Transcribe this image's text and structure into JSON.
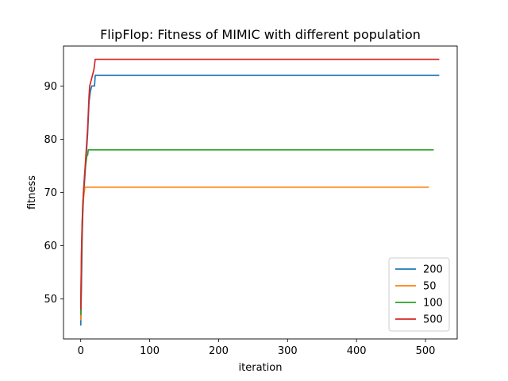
{
  "chart_data": {
    "type": "line",
    "title": "FlipFlop: Fitness of MIMIC with different population",
    "xlabel": "iteration",
    "ylabel": "fitness",
    "xlim": [
      -25,
      546
    ],
    "ylim": [
      42.5,
      97.5
    ],
    "xticks": [
      0,
      100,
      200,
      300,
      400,
      500
    ],
    "yticks": [
      50,
      60,
      70,
      80,
      90
    ],
    "grid": false,
    "legend_position": "lower-right",
    "series": [
      {
        "name": "200",
        "color": "#1f77b4",
        "points": [
          [
            0,
            45
          ],
          [
            1,
            52
          ],
          [
            2,
            61
          ],
          [
            3,
            66
          ],
          [
            4,
            69
          ],
          [
            5,
            71
          ],
          [
            6,
            73
          ],
          [
            7,
            75
          ],
          [
            8,
            77
          ],
          [
            9,
            79
          ],
          [
            10,
            81
          ],
          [
            11,
            84
          ],
          [
            12,
            87
          ],
          [
            13,
            88
          ],
          [
            14,
            89
          ],
          [
            16,
            90
          ],
          [
            20,
            90
          ],
          [
            21,
            92
          ],
          [
            520,
            92
          ]
        ]
      },
      {
        "name": "50",
        "color": "#ff7f0e",
        "points": [
          [
            0,
            46
          ],
          [
            1,
            58
          ],
          [
            2,
            64
          ],
          [
            3,
            67
          ],
          [
            4,
            69
          ],
          [
            5,
            70
          ],
          [
            6,
            71
          ],
          [
            505,
            71
          ]
        ]
      },
      {
        "name": "100",
        "color": "#2ca02c",
        "points": [
          [
            0,
            47
          ],
          [
            1,
            56
          ],
          [
            2,
            63
          ],
          [
            3,
            67
          ],
          [
            4,
            70
          ],
          [
            5,
            72
          ],
          [
            6,
            74
          ],
          [
            7,
            75
          ],
          [
            8,
            76
          ],
          [
            9,
            77
          ],
          [
            10,
            77
          ],
          [
            11,
            78
          ],
          [
            512,
            78
          ]
        ]
      },
      {
        "name": "500",
        "color": "#d62728",
        "points": [
          [
            0,
            48
          ],
          [
            1,
            58
          ],
          [
            2,
            64
          ],
          [
            3,
            68
          ],
          [
            4,
            70
          ],
          [
            5,
            72
          ],
          [
            6,
            74
          ],
          [
            7,
            76
          ],
          [
            8,
            78
          ],
          [
            9,
            80
          ],
          [
            10,
            82
          ],
          [
            11,
            85
          ],
          [
            12,
            88
          ],
          [
            13,
            90
          ],
          [
            15,
            91
          ],
          [
            17,
            92
          ],
          [
            19,
            93
          ],
          [
            20,
            94
          ],
          [
            21,
            95
          ],
          [
            520,
            95
          ]
        ]
      }
    ]
  }
}
